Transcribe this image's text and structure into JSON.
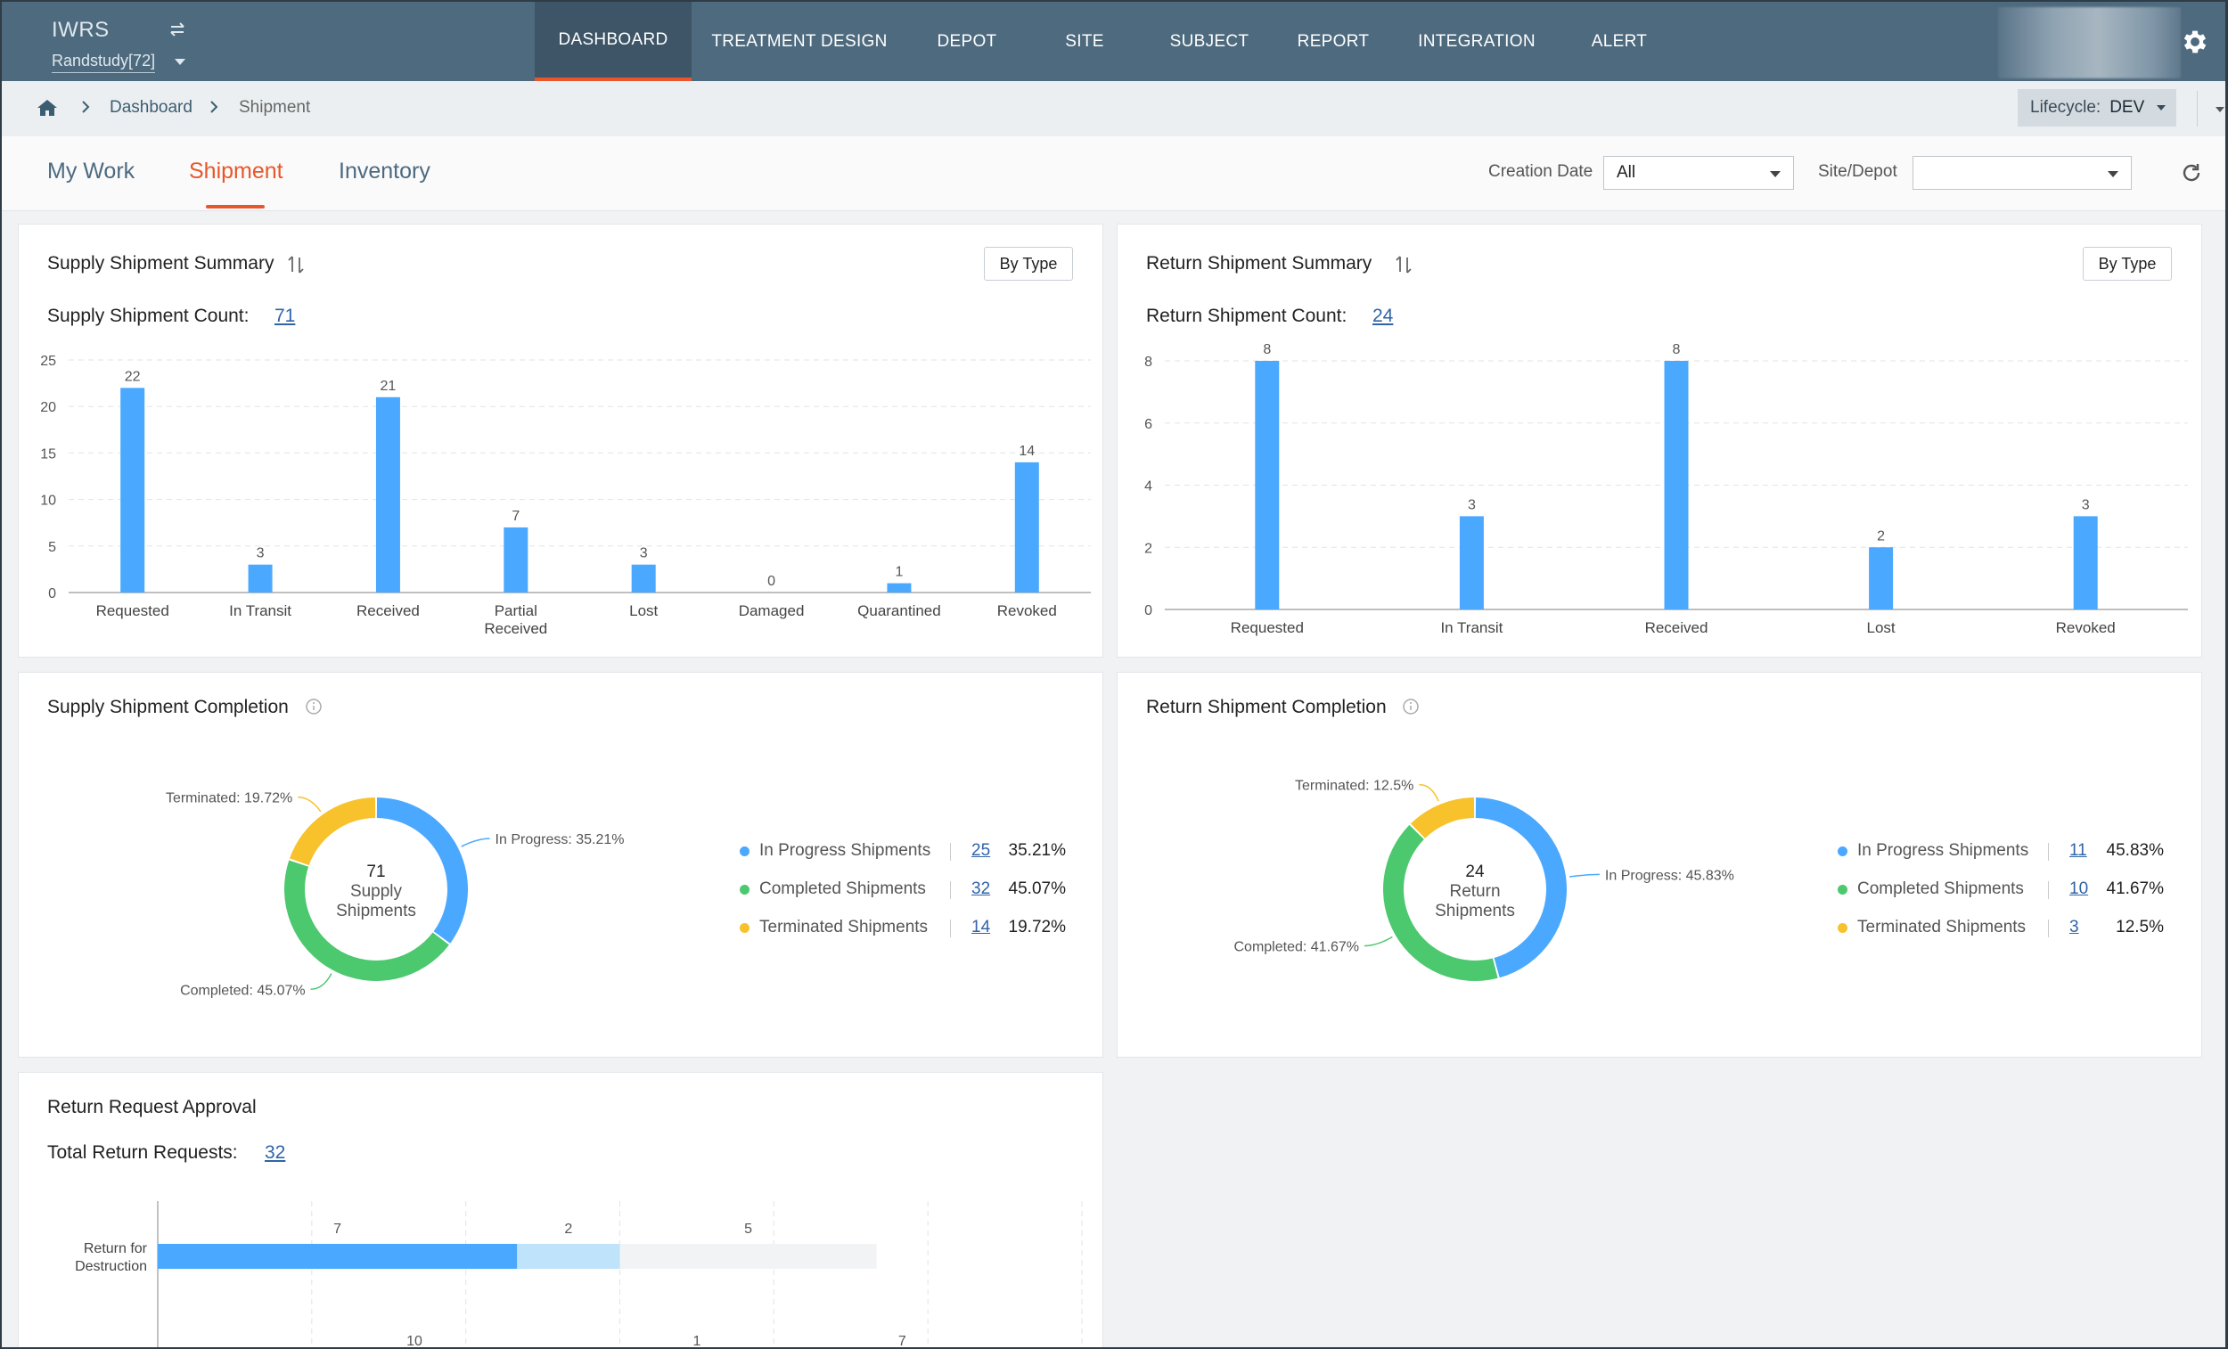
{
  "app": {
    "name": "IWRS",
    "study": "Randstudy[72]",
    "icons": {
      "swap": "swap-arrows-icon",
      "settings": "gear-icon"
    }
  },
  "nav": {
    "tabs": [
      {
        "label": "DASHBOARD",
        "active": true
      },
      {
        "label": "TREATMENT DESIGN",
        "active": false
      },
      {
        "label": "DEPOT",
        "active": false
      },
      {
        "label": "SITE",
        "active": false
      },
      {
        "label": "SUBJECT",
        "active": false
      },
      {
        "label": "REPORT",
        "active": false
      },
      {
        "label": "INTEGRATION",
        "active": false
      },
      {
        "label": "ALERT",
        "active": false
      }
    ]
  },
  "breadcrumb": {
    "items": [
      "Dashboard",
      "Shipment"
    ],
    "lifecycle_label": "Lifecycle:",
    "lifecycle_value": "DEV"
  },
  "subtabs": {
    "items": [
      "My Work",
      "Shipment",
      "Inventory"
    ],
    "active": "Shipment"
  },
  "filters": {
    "creation_date_label": "Creation Date",
    "creation_date_value": "All",
    "site_depot_label": "Site/Depot",
    "site_depot_value": ""
  },
  "supply_summary": {
    "title": "Supply Shipment Summary",
    "button": "By Type",
    "count_label": "Supply Shipment Count:",
    "count": "71"
  },
  "return_summary": {
    "title": "Return Shipment Summary",
    "button": "By Type",
    "count_label": "Return Shipment Count:",
    "count": "24"
  },
  "supply_completion": {
    "title": "Supply Shipment Completion",
    "center": [
      "71",
      "Supply",
      "Shipments"
    ],
    "legend": [
      {
        "label": "In Progress Shipments",
        "count": "25",
        "pct": "35.21%"
      },
      {
        "label": "Completed Shipments",
        "count": "32",
        "pct": "45.07%"
      },
      {
        "label": "Terminated Shipments",
        "count": "14",
        "pct": "19.72%"
      }
    ]
  },
  "return_completion": {
    "title": "Return Shipment Completion",
    "center": [
      "24",
      "Return",
      "Shipments"
    ],
    "legend": [
      {
        "label": "In Progress Shipments",
        "count": "11",
        "pct": "45.83%"
      },
      {
        "label": "Completed Shipments",
        "count": "10",
        "pct": "41.67%"
      },
      {
        "label": "Terminated Shipments",
        "count": "3",
        "pct": "12.5%"
      }
    ]
  },
  "return_approval": {
    "title": "Return Request Approval",
    "count_label": "Total Return Requests:",
    "count": "32"
  },
  "colors": {
    "blue": "#4aa8ff",
    "green": "#4cc86e",
    "yellow": "#f7c22c",
    "light_blue": "#bfe3fb",
    "track": "#f2f3f5",
    "nav": "#4e6a7e",
    "accent": "#e8572b",
    "link": "#2f64a8"
  },
  "chart_data": [
    {
      "id": "supply-summary",
      "type": "bar",
      "categories": [
        "Requested",
        "In Transit",
        "Received",
        "Partial Received",
        "Lost",
        "Damaged",
        "Quarantined",
        "Revoked"
      ],
      "values": [
        22,
        3,
        21,
        7,
        3,
        0,
        1,
        14
      ],
      "ylim": [
        0,
        25
      ],
      "yticks": [
        0,
        5,
        10,
        15,
        20,
        25
      ],
      "grid": true
    },
    {
      "id": "return-summary",
      "type": "bar",
      "categories": [
        "Requested",
        "In Transit",
        "Received",
        "Lost",
        "Revoked"
      ],
      "values": [
        8,
        3,
        8,
        2,
        3
      ],
      "ylim": [
        0,
        8
      ],
      "yticks": [
        0,
        2,
        4,
        6,
        8
      ],
      "grid": true
    },
    {
      "id": "supply-completion",
      "type": "pie",
      "labels": [
        "In Progress",
        "Completed",
        "Terminated"
      ],
      "values": [
        35.21,
        45.07,
        19.72
      ],
      "callouts": [
        "In Progress: 35.21%",
        "Completed: 45.07%",
        "Terminated: 19.72%"
      ]
    },
    {
      "id": "return-completion",
      "type": "pie",
      "labels": [
        "In Progress",
        "Completed",
        "Terminated"
      ],
      "values": [
        45.83,
        41.67,
        12.5
      ],
      "callouts": [
        "In Progress: 45.83%",
        "Completed: 41.67%",
        "Terminated: 12.5%"
      ]
    },
    {
      "id": "return-approval",
      "type": "bar",
      "orientation": "horizontal",
      "stacked": true,
      "categories": [
        "Return for Destruction"
      ],
      "series": [
        {
          "values": [
            7
          ]
        },
        {
          "values": [
            2
          ]
        },
        {
          "values": [
            5
          ]
        }
      ],
      "xlim": [
        0,
        18
      ],
      "partial_row_values": [
        10,
        1,
        7
      ]
    }
  ]
}
